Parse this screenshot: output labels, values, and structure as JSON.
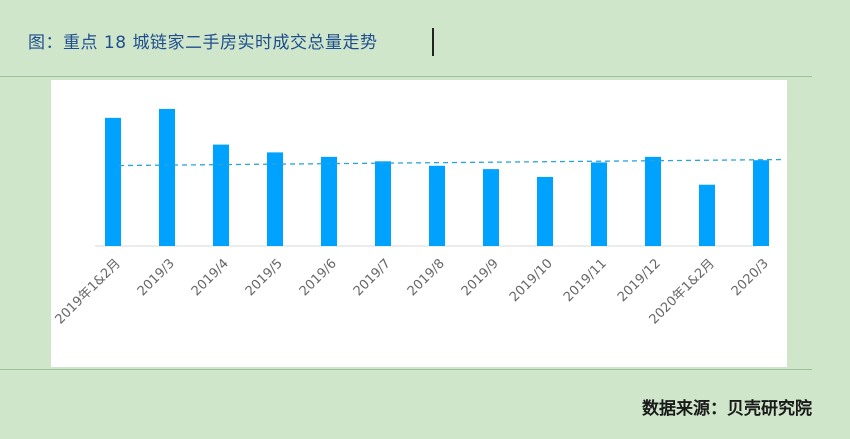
{
  "title": "图：重点 18 城链家二手房实时成交总量走势",
  "source": "数据来源：贝壳研究院",
  "colors": {
    "bar": "#00a2ff",
    "reference_line": "#2ba3d9",
    "background": "#cfe6cb"
  },
  "chart_data": {
    "type": "bar",
    "title": "图：重点 18 城链家二手房实时成交总量走势",
    "categories": [
      "2019年1&2月",
      "2019/3",
      "2019/4",
      "2019/5",
      "2019/6",
      "2019/7",
      "2019/8",
      "2019/9",
      "2019/10",
      "2019/11",
      "2019/12",
      "2020年1&2月",
      "2020/3"
    ],
    "values": [
      115,
      123,
      91,
      84,
      80,
      76,
      72,
      69,
      62,
      75,
      80,
      55,
      77
    ],
    "reference_line": 74,
    "ylim": [
      0,
      140
    ],
    "y_axis_labels_shown": false,
    "grid": false,
    "legend": "none"
  }
}
